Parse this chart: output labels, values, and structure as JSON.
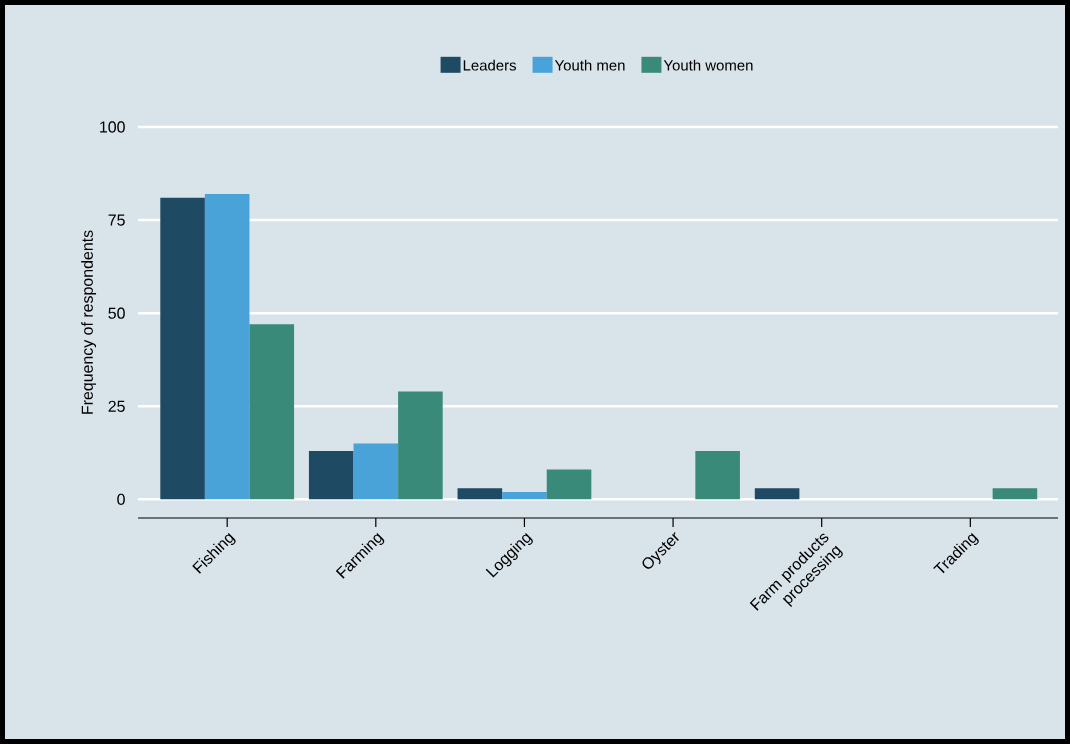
{
  "chart_data": {
    "type": "bar",
    "ylabel": "Frequency of respondents",
    "categories": [
      "Fishing",
      "Farming",
      "Logging",
      "Oyster",
      "Farm products processing",
      "Trading"
    ],
    "series": [
      {
        "name": "Leaders",
        "color": "#1f4a63",
        "values": [
          81,
          13,
          3,
          0,
          3,
          0
        ]
      },
      {
        "name": "Youth men",
        "color": "#4aa3d8",
        "values": [
          82,
          15,
          2,
          0,
          0,
          0
        ]
      },
      {
        "name": "Youth women",
        "color": "#3a8a7a",
        "values": [
          47,
          29,
          8,
          13,
          0,
          3
        ]
      }
    ],
    "ylim": [
      -5,
      100
    ],
    "yticks": [
      0,
      25,
      50,
      75,
      100
    ],
    "grid": "y",
    "legend": "top"
  }
}
